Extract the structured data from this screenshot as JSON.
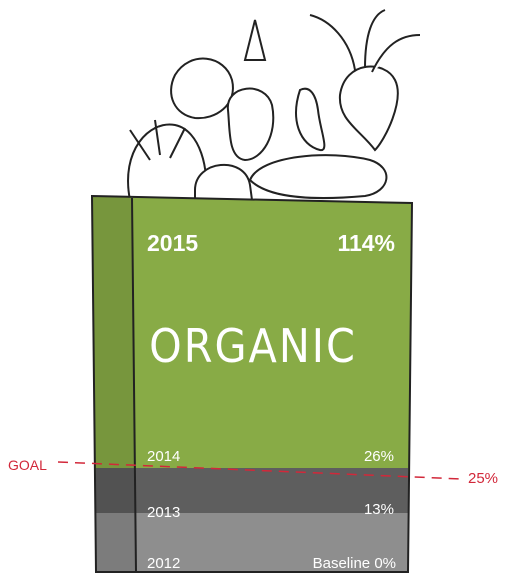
{
  "header": {
    "year": "2015",
    "value": "114%",
    "title": "ORGANIC"
  },
  "rows": [
    {
      "year": "2014",
      "value": "26%"
    },
    {
      "year": "2013",
      "value": "13%"
    },
    {
      "year": "2012",
      "value": "Baseline 0%"
    }
  ],
  "goal": {
    "label": "GOAL",
    "value": "25%"
  }
}
